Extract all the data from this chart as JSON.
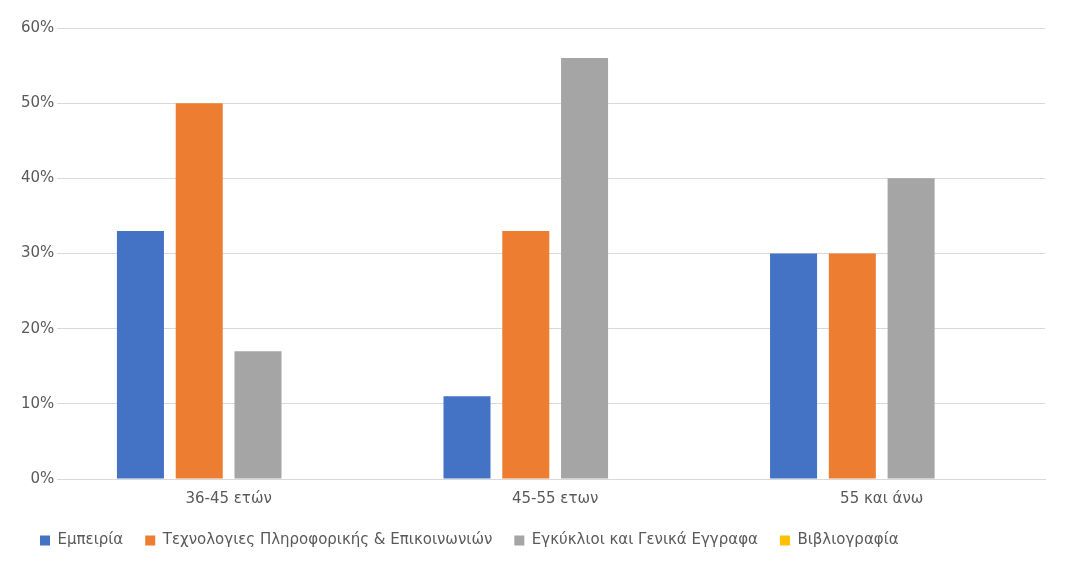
{
  "chart_data": {
    "type": "bar",
    "categories": [
      "36-45 ετών",
      "45-55 ετων",
      "55 και άνω"
    ],
    "series": [
      {
        "name": "Εμπειρία",
        "color": "#4472c4",
        "values": [
          33,
          11,
          30
        ]
      },
      {
        "name": "Τεχνολογιες Πληροφορικής & Επικοινωνιών",
        "color": "#ed7d31",
        "values": [
          50,
          33,
          30
        ]
      },
      {
        "name": "Εγκύκλιοι και Γενικά Εγγραφα",
        "color": "#a5a5a5",
        "values": [
          17,
          56,
          40
        ]
      },
      {
        "name": "Βιβλιογραφία",
        "color": "#ffc000",
        "values": [
          0,
          0,
          0
        ]
      }
    ],
    "ylim": [
      0,
      60
    ],
    "yticks": [
      {
        "value": 0,
        "label": "0%"
      },
      {
        "value": 10,
        "label": "10%"
      },
      {
        "value": 20,
        "label": "20%"
      },
      {
        "value": 30,
        "label": "30%"
      },
      {
        "value": 40,
        "label": "40%"
      },
      {
        "value": 50,
        "label": "50%"
      },
      {
        "value": 60,
        "label": "60%"
      }
    ],
    "grid": "y",
    "legend": "bottom"
  }
}
